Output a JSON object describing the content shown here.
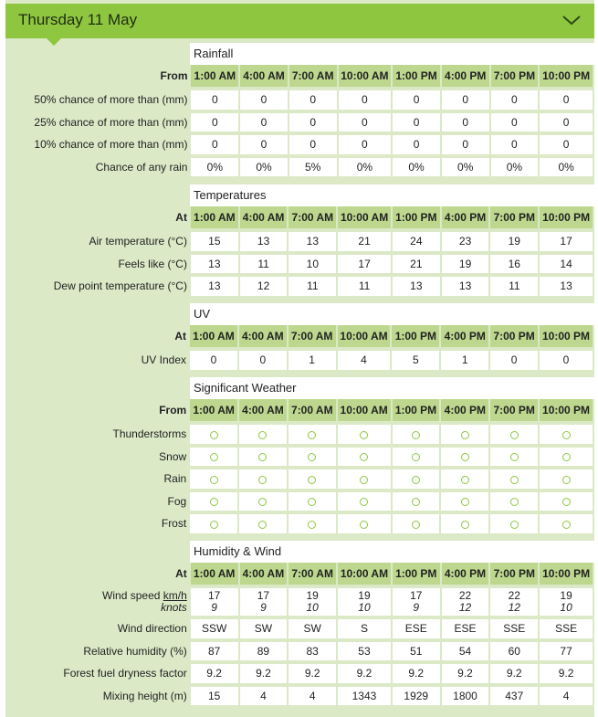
{
  "header": {
    "title": "Thursday 11 May",
    "toggle_icon": "chevron-down-icon"
  },
  "times": [
    "1:00 AM",
    "4:00 AM",
    "7:00 AM",
    "10:00 AM",
    "1:00 PM",
    "4:00 PM",
    "7:00 PM",
    "10:00 PM"
  ],
  "rainfall": {
    "title": "Rainfall",
    "header_label": "From",
    "rows": [
      {
        "label": "50% chance of more than (mm)",
        "values": [
          "0",
          "0",
          "0",
          "0",
          "0",
          "0",
          "0",
          "0"
        ]
      },
      {
        "label": "25% chance of more than (mm)",
        "values": [
          "0",
          "0",
          "0",
          "0",
          "0",
          "0",
          "0",
          "0"
        ]
      },
      {
        "label": "10% chance of more than (mm)",
        "values": [
          "0",
          "0",
          "0",
          "0",
          "0",
          "0",
          "0",
          "0"
        ]
      },
      {
        "label": "Chance of any rain",
        "values": [
          "0%",
          "0%",
          "5%",
          "0%",
          "0%",
          "0%",
          "0%",
          "0%"
        ]
      }
    ]
  },
  "temperatures": {
    "title": "Temperatures",
    "header_label": "At",
    "rows": [
      {
        "label": "Air temperature (°C)",
        "values": [
          "15",
          "13",
          "13",
          "21",
          "24",
          "23",
          "19",
          "17"
        ]
      },
      {
        "label": "Feels like (°C)",
        "values": [
          "13",
          "11",
          "10",
          "17",
          "21",
          "19",
          "16",
          "14"
        ]
      },
      {
        "label": "Dew point temperature (°C)",
        "values": [
          "13",
          "12",
          "11",
          "11",
          "13",
          "13",
          "11",
          "13"
        ]
      }
    ]
  },
  "uv": {
    "title": "UV",
    "header_label": "At",
    "rows": [
      {
        "label": "UV Index",
        "values": [
          "0",
          "0",
          "1",
          "4",
          "5",
          "1",
          "0",
          "0"
        ]
      }
    ]
  },
  "weather": {
    "title": "Significant Weather",
    "header_label": "From",
    "indicator_icon": "circle-outline-icon",
    "rows": [
      {
        "label": "Thunderstorms"
      },
      {
        "label": "Snow"
      },
      {
        "label": "Rain"
      },
      {
        "label": "Fog"
      },
      {
        "label": "Frost"
      }
    ]
  },
  "humidity": {
    "title": "Humidity & Wind",
    "header_label": "At",
    "wind_speed": {
      "label_prefix": "Wind speed ",
      "label_unit": "km/h",
      "label_knots": "knots",
      "kmh": [
        "17",
        "17",
        "19",
        "19",
        "17",
        "22",
        "22",
        "19"
      ],
      "knots": [
        "9",
        "9",
        "10",
        "10",
        "9",
        "12",
        "12",
        "10"
      ]
    },
    "rows": [
      {
        "label": "Wind direction",
        "values": [
          "SSW",
          "SW",
          "SW",
          "S",
          "ESE",
          "ESE",
          "SSE",
          "SSE"
        ]
      },
      {
        "label": "Relative humidity (%)",
        "values": [
          "87",
          "89",
          "83",
          "53",
          "51",
          "54",
          "60",
          "77"
        ]
      },
      {
        "label": "Forest fuel dryness factor",
        "values": [
          "9.2",
          "9.2",
          "9.2",
          "9.2",
          "9.2",
          "9.2",
          "9.2",
          "9.2"
        ]
      },
      {
        "label": "Mixing height (m)",
        "values": [
          "15",
          "4",
          "4",
          "1343",
          "1929",
          "1800",
          "437",
          "4"
        ]
      }
    ]
  },
  "colors": {
    "accent": "#8ec63f",
    "header_cell": "#bdd88e",
    "panel": "#dbe9c7"
  }
}
